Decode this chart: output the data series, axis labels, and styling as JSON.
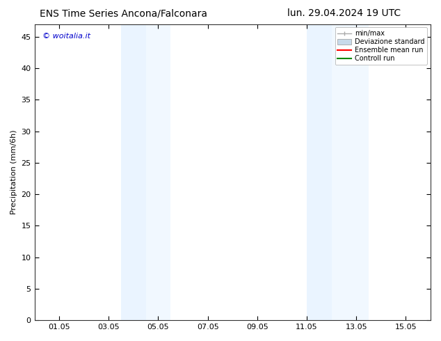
{
  "title_left": "ENS Time Series Ancona/Falconara",
  "title_right": "lun. 29.04.2024 19 UTC",
  "ylabel": "Precipitation (mm/6h)",
  "watermark": "© woitalia.it",
  "watermark_color": "#0000cc",
  "xticklabels": [
    "01.05",
    "03.05",
    "05.05",
    "07.05",
    "09.05",
    "11.05",
    "13.05",
    "15.05"
  ],
  "xtick_positions": [
    1,
    3,
    5,
    7,
    9,
    11,
    13,
    15
  ],
  "ylim": [
    0,
    47
  ],
  "yticks": [
    0,
    5,
    10,
    15,
    20,
    25,
    30,
    35,
    40,
    45
  ],
  "shaded_regions": [
    {
      "xmin": 3.5,
      "xmax": 4.5,
      "color": "#ddeeff",
      "alpha": 0.6
    },
    {
      "xmin": 4.5,
      "xmax": 5.5,
      "color": "#ddeeff",
      "alpha": 0.4
    },
    {
      "xmin": 11.0,
      "xmax": 12.0,
      "color": "#ddeeff",
      "alpha": 0.6
    },
    {
      "xmin": 12.0,
      "xmax": 13.5,
      "color": "#ddeeff",
      "alpha": 0.4
    }
  ],
  "xlim": [
    0,
    16
  ],
  "legend_labels": [
    "min/max",
    "Deviazione standard",
    "Ensemble mean run",
    "Controll run"
  ],
  "legend_colors": [
    "#aaaaaa",
    "#c8daea",
    "#ff0000",
    "#008800"
  ],
  "background_color": "#ffffff",
  "plot_bg_color": "#ffffff",
  "title_fontsize": 10,
  "tick_fontsize": 8,
  "label_fontsize": 8
}
